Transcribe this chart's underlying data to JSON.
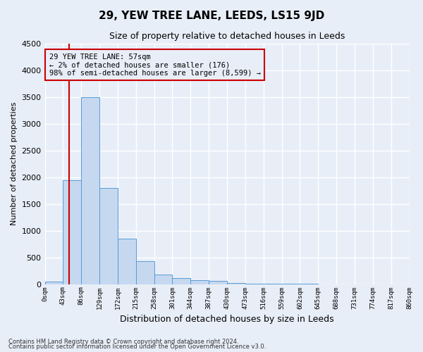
{
  "title": "29, YEW TREE LANE, LEEDS, LS15 9JD",
  "subtitle": "Size of property relative to detached houses in Leeds",
  "xlabel": "Distribution of detached houses by size in Leeds",
  "ylabel": "Number of detached properties",
  "footnote1": "Contains HM Land Registry data © Crown copyright and database right 2024.",
  "footnote2": "Contains public sector information licensed under the Open Government Licence v3.0.",
  "annotation_title": "29 YEW TREE LANE: 57sqm",
  "annotation_line1": "← 2% of detached houses are smaller (176)",
  "annotation_line2": "98% of semi-detached houses are larger (8,599) →",
  "property_size_sqm": 57,
  "bar_color": "#c5d8f0",
  "bar_edge_color": "#5b9bd5",
  "marker_line_color": "#cc0000",
  "annotation_box_color": "#cc0000",
  "background_color": "#e8eef8",
  "ylim": [
    0,
    4500
  ],
  "yticks": [
    0,
    500,
    1000,
    1500,
    2000,
    2500,
    3000,
    3500,
    4000,
    4500
  ],
  "bin_edges": [
    0,
    43,
    86,
    129,
    172,
    215,
    258,
    301,
    344,
    387,
    430,
    473,
    516,
    559,
    602,
    645,
    688,
    731,
    774,
    817,
    860
  ],
  "bin_labels": [
    "0sqm",
    "43sqm",
    "86sqm",
    "129sqm",
    "172sqm",
    "215sqm",
    "258sqm",
    "301sqm",
    "344sqm",
    "387sqm",
    "430sqm",
    "473sqm",
    "516sqm",
    "559sqm",
    "602sqm",
    "645sqm",
    "688sqm",
    "731sqm",
    "774sqm",
    "817sqm",
    "860sqm"
  ],
  "bar_heights": [
    50,
    1950,
    3500,
    1800,
    850,
    430,
    175,
    110,
    80,
    55,
    20,
    10,
    5,
    3,
    2,
    1,
    1,
    0,
    0,
    0
  ]
}
